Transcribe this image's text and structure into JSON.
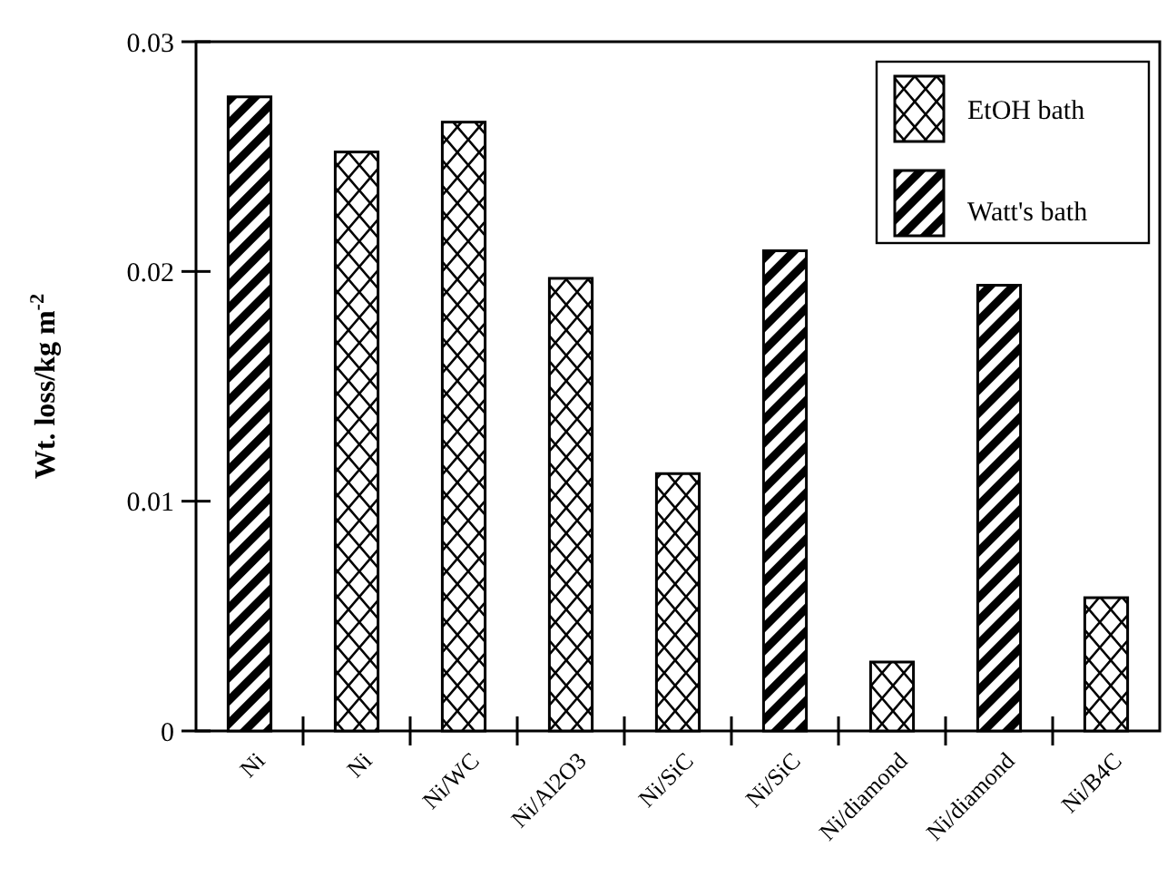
{
  "chart_data": {
    "type": "bar",
    "ylabel": "Wt. loss/kg m$^{-2}$",
    "categories": [
      "Ni",
      "Ni",
      "Ni/WC",
      "Ni/Al2O3",
      "Ni/SiC",
      "Ni/SiC",
      "Ni/diamond",
      "Ni/diamond",
      "Ni/B4C"
    ],
    "series": [
      {
        "name": "EtOH bath",
        "color": "#000000",
        "values": [
          null,
          0.0252,
          0.0265,
          0.0197,
          0.0112,
          null,
          0.003,
          null,
          0.0058
        ]
      },
      {
        "name": "Watt's bath",
        "color": "#000000",
        "values": [
          0.0276,
          null,
          null,
          null,
          null,
          0.0209,
          null,
          0.0194,
          null
        ]
      }
    ],
    "ylim": [
      0,
      0.03
    ],
    "yticks": [
      0,
      0.01,
      0.02,
      0.03
    ],
    "grid": false,
    "legend": "top right"
  }
}
